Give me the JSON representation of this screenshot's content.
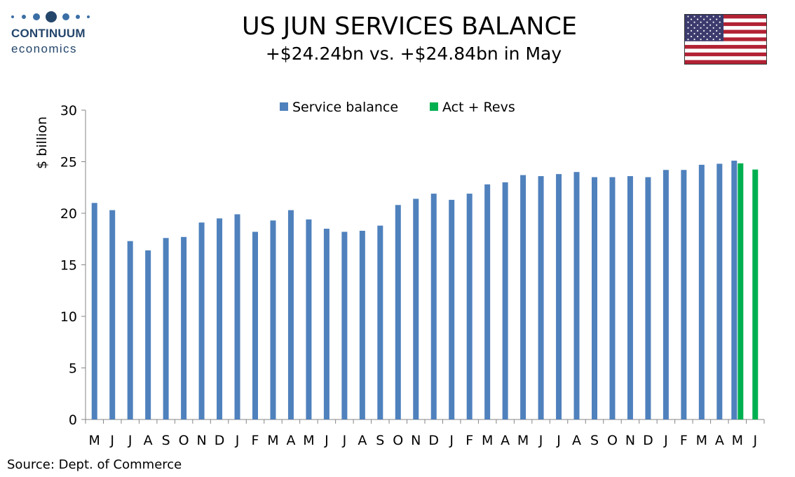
{
  "logo": {
    "word": "CONTINUUM",
    "sub": "economics"
  },
  "title": "US JUN SERVICES BALANCE",
  "subtitle": "+$24.24bn vs. +$24.84bn in May",
  "source": "Source: Dept. of Commerce",
  "colors": {
    "service": "#4f81bd",
    "act_revs": "#00b050",
    "logo": "#24466b"
  },
  "chart_data": {
    "type": "bar",
    "ylabel": "$ billion",
    "xlabel": "",
    "ylim": [
      0,
      30
    ],
    "yticks": [
      0,
      5,
      10,
      15,
      20,
      25,
      30
    ],
    "grid": false,
    "legend": "top-center",
    "categories": [
      "M",
      "J",
      "J",
      "A",
      "S",
      "O",
      "N",
      "D",
      "J",
      "F",
      "M",
      "A",
      "M",
      "J",
      "J",
      "A",
      "S",
      "O",
      "N",
      "D",
      "J",
      "F",
      "M",
      "A",
      "M",
      "J",
      "J",
      "A",
      "S",
      "O",
      "N",
      "D",
      "J",
      "F",
      "M",
      "A",
      "M",
      "J"
    ],
    "series": [
      {
        "name": "Service balance",
        "color": "#4f81bd",
        "values": [
          21.0,
          20.3,
          17.3,
          16.4,
          17.6,
          17.7,
          19.1,
          19.5,
          19.9,
          18.2,
          19.3,
          20.3,
          19.4,
          18.5,
          18.2,
          18.3,
          18.8,
          20.8,
          21.4,
          21.9,
          21.3,
          21.9,
          22.8,
          23.0,
          23.7,
          23.6,
          23.8,
          24.0,
          23.5,
          23.5,
          23.6,
          23.5,
          24.2,
          24.2,
          24.7,
          24.8,
          25.1,
          null
        ]
      },
      {
        "name": "Act + Revs",
        "color": "#00b050",
        "values": [
          null,
          null,
          null,
          null,
          null,
          null,
          null,
          null,
          null,
          null,
          null,
          null,
          null,
          null,
          null,
          null,
          null,
          null,
          null,
          null,
          null,
          null,
          null,
          null,
          null,
          null,
          null,
          null,
          null,
          null,
          null,
          null,
          null,
          null,
          null,
          null,
          24.84,
          24.24
        ]
      }
    ]
  }
}
